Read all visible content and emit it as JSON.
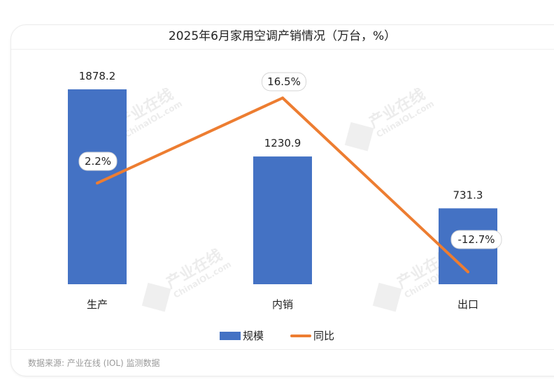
{
  "chart_data": {
    "type": "bar+line",
    "title": "2025年6月家用空调产销情况（万台，%）",
    "categories": [
      "生产",
      "内销",
      "出口"
    ],
    "series": [
      {
        "name": "规模",
        "type": "bar",
        "axis": "left",
        "values": [
          1878.2,
          1230.9,
          731.3
        ],
        "labels": [
          "1878.2",
          "1230.9",
          "731.3"
        ],
        "color": "#4472C4"
      },
      {
        "name": "同比",
        "type": "line",
        "axis": "right",
        "values": [
          2.2,
          16.5,
          -12.7
        ],
        "labels": [
          "2.2%",
          "16.5%",
          "-12.7%"
        ],
        "color": "#ED7D31"
      }
    ],
    "legend": "bottom",
    "grid": false,
    "axes_visible": false
  },
  "watermark": "产业在线 ChinaIOL.com",
  "source": "数据来源: 产业在线 (IOL) 监测数据"
}
